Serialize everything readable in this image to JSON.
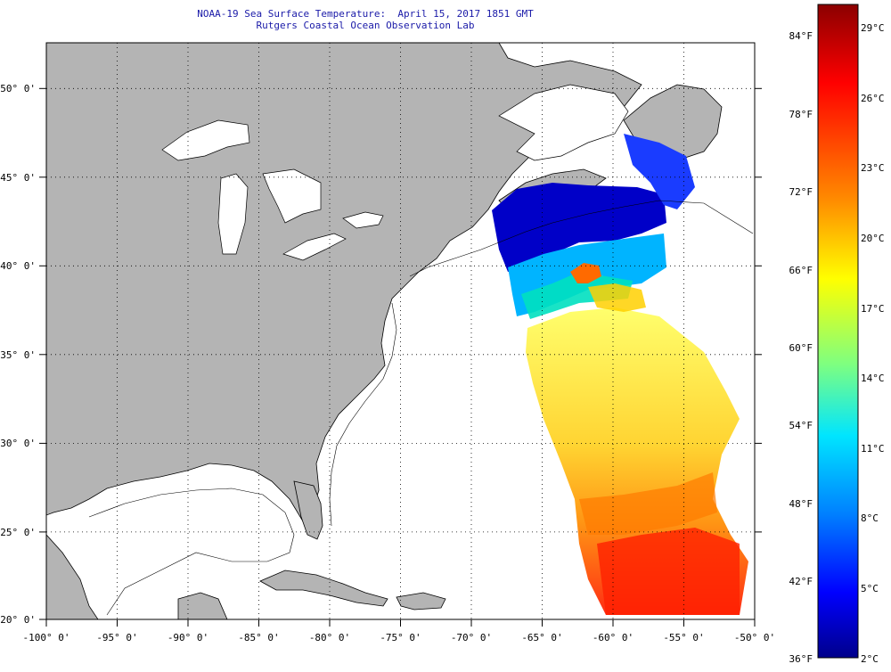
{
  "header": {
    "title": "NOAA-19 Sea Surface Temperature:  April 15, 2017 1851 GMT",
    "subtitle": "Rutgers Coastal Ocean Observation Lab"
  },
  "map": {
    "lon_range": [
      -100,
      -50
    ],
    "lat_range": [
      20,
      52.5
    ],
    "lon_ticks": [
      "-100° 0'",
      "-95° 0'",
      "-90° 0'",
      "-85° 0'",
      "-80° 0'",
      "-75° 0'",
      "-70° 0'",
      "-65° 0'",
      "-60° 0'",
      "-55° 0'",
      "-50° 0'"
    ],
    "lat_ticks": [
      "50° 0'",
      "45° 0'",
      "40° 0'",
      "35° 0'",
      "30° 0'",
      "25° 0'",
      "20° 0'"
    ],
    "colors": {
      "land": "#b4b4b4",
      "ocean": "#ffffff",
      "coast": "#000000"
    }
  },
  "colorbar": {
    "f_labels": [
      "84°F",
      "78°F",
      "72°F",
      "66°F",
      "60°F",
      "54°F",
      "48°F",
      "42°F",
      "36°F"
    ],
    "c_labels": [
      "29°C",
      "26°C",
      "23°C",
      "20°C",
      "17°C",
      "14°C",
      "11°C",
      "8°C",
      "5°C",
      "2°C"
    ],
    "stops": [
      "#8b0000",
      "#ff0000",
      "#ff8c00",
      "#ffff00",
      "#7fff7f",
      "#00e5ff",
      "#0080ff",
      "#0000ff",
      "#00008b"
    ]
  }
}
